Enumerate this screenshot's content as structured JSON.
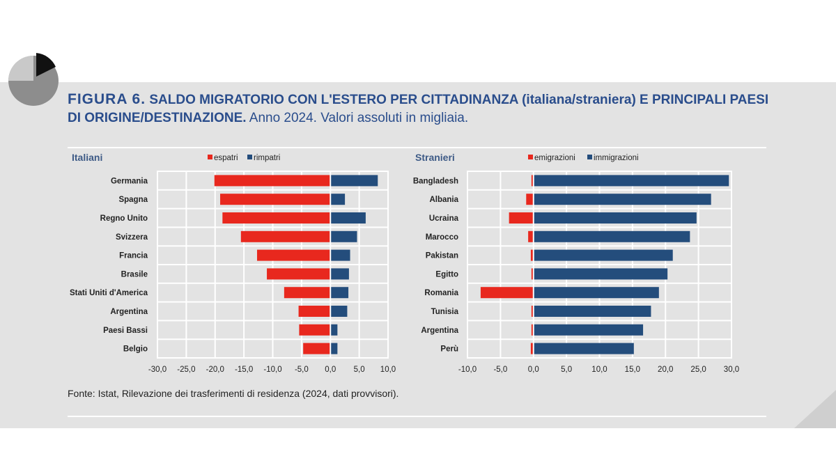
{
  "title": {
    "figure_label": "FIGURA 6.",
    "main": "SALDO MIGRATORIO CON L'ESTERO PER CITTADINANZA (italiana/straniera) E PRINCIPALI PAESI DI ORIGINE/DESTINAZIONE.",
    "subtitle": "Anno 2024. Valori assoluti in migliaia."
  },
  "source": "Fonte: Istat, Rilevazione dei trasferimenti di residenza (2024, dati provvisori).",
  "colors": {
    "red": "#e8281e",
    "blue": "#244d7c",
    "band": "#e3e3e3",
    "title": "#2a4d8c"
  },
  "chart_data": [
    {
      "type": "bar",
      "orientation": "horizontal",
      "title": "Italiani",
      "categories": [
        "Germania",
        "Spagna",
        "Regno Unito",
        "Svizzera",
        "Francia",
        "Brasile",
        "Stati Uniti d'America",
        "Argentina",
        "Paesi Bassi",
        "Belgio"
      ],
      "series": [
        {
          "name": "espatri",
          "color": "#e8281e",
          "values": [
            -20.0,
            -19.0,
            -18.6,
            -15.4,
            -12.6,
            -10.9,
            -7.9,
            -5.4,
            -5.3,
            -4.6
          ]
        },
        {
          "name": "rimpatri",
          "color": "#244d7c",
          "values": [
            8.1,
            2.4,
            6.0,
            4.5,
            3.3,
            3.1,
            3.0,
            2.8,
            1.1,
            1.1
          ]
        }
      ],
      "xlim": [
        -30,
        10
      ],
      "xticks": [
        "-30,0",
        "-25,0",
        "-20,0",
        "-15,0",
        "-10,0",
        "-5,0",
        "0,0",
        "5,0",
        "10,0"
      ],
      "legend": "top",
      "grid": true
    },
    {
      "type": "bar",
      "orientation": "horizontal",
      "title": "Stranieri",
      "categories": [
        "Bangladesh",
        "Albania",
        "Ucraina",
        "Marocco",
        "Pakistan",
        "Egitto",
        "Romania",
        "Tunisia",
        "Argentina",
        "Perù"
      ],
      "series": [
        {
          "name": "emigrazioni",
          "color": "#e8281e",
          "values": [
            -0.2,
            -1.0,
            -3.6,
            -0.7,
            -0.3,
            -0.2,
            -7.9,
            -0.2,
            -0.2,
            -0.3
          ]
        },
        {
          "name": "immigrazioni",
          "color": "#244d7c",
          "values": [
            29.5,
            26.8,
            24.6,
            23.6,
            21.0,
            20.2,
            18.9,
            17.7,
            16.5,
            15.1
          ]
        }
      ],
      "xlim": [
        -10,
        30
      ],
      "xticks": [
        "-10,0",
        "-5,0",
        "0,0",
        "5,0",
        "10,0",
        "15,0",
        "20,0",
        "25,0",
        "30,0"
      ],
      "legend": "top",
      "grid": true
    }
  ]
}
